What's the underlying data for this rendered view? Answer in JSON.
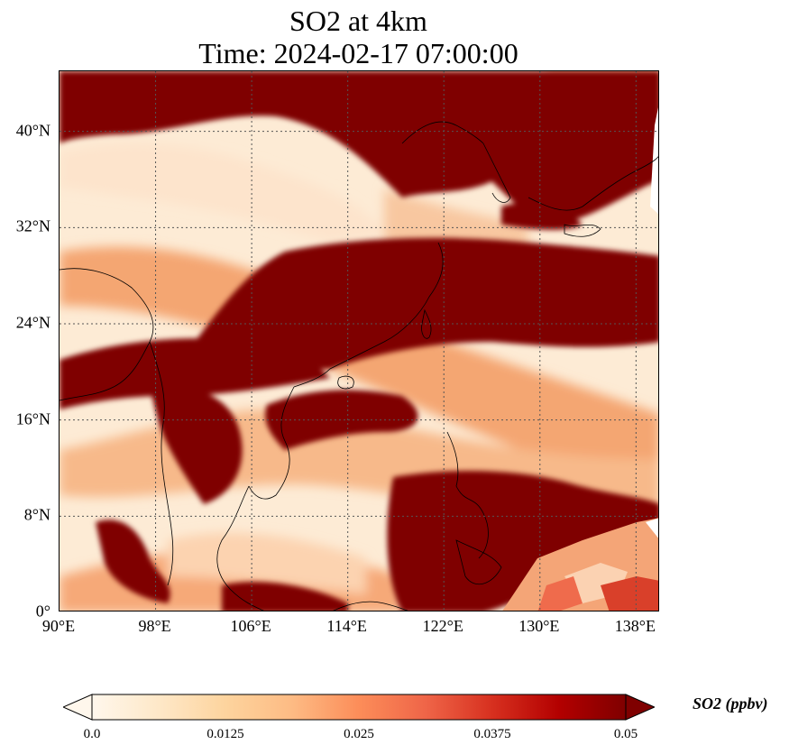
{
  "title": {
    "line1": "SO2 at 4km",
    "line2": "Time: 2024-02-17 07:00:00"
  },
  "map": {
    "projection": "PlateCarree",
    "extent_lon": [
      90,
      140
    ],
    "extent_lat": [
      0,
      45
    ],
    "gridlines": "dotted",
    "x_ticks": [
      "90°E",
      "98°E",
      "106°E",
      "114°E",
      "122°E",
      "130°E",
      "138°E"
    ],
    "x_tick_values": [
      90,
      98,
      106,
      114,
      122,
      130,
      138
    ],
    "y_ticks": [
      "0°",
      "8°N",
      "16°N",
      "24°N",
      "32°N",
      "40°N"
    ],
    "y_tick_values": [
      0,
      8,
      16,
      24,
      32,
      40
    ],
    "colormap": "OrRd",
    "high_color": "#7f0000",
    "low_color": "#fff7ec"
  },
  "colorbar": {
    "label": "SO2 (ppbv)",
    "ticks": [
      "0.0",
      "0.0125",
      "0.025",
      "0.0375",
      "0.05"
    ],
    "min": 0,
    "max": 0.05,
    "extend": "both",
    "colors": [
      "#fff7ec",
      "#fee8c8",
      "#fdd49e",
      "#fdbb84",
      "#fc8d59",
      "#ef6548",
      "#d7301f",
      "#b30000",
      "#7f0000"
    ]
  }
}
